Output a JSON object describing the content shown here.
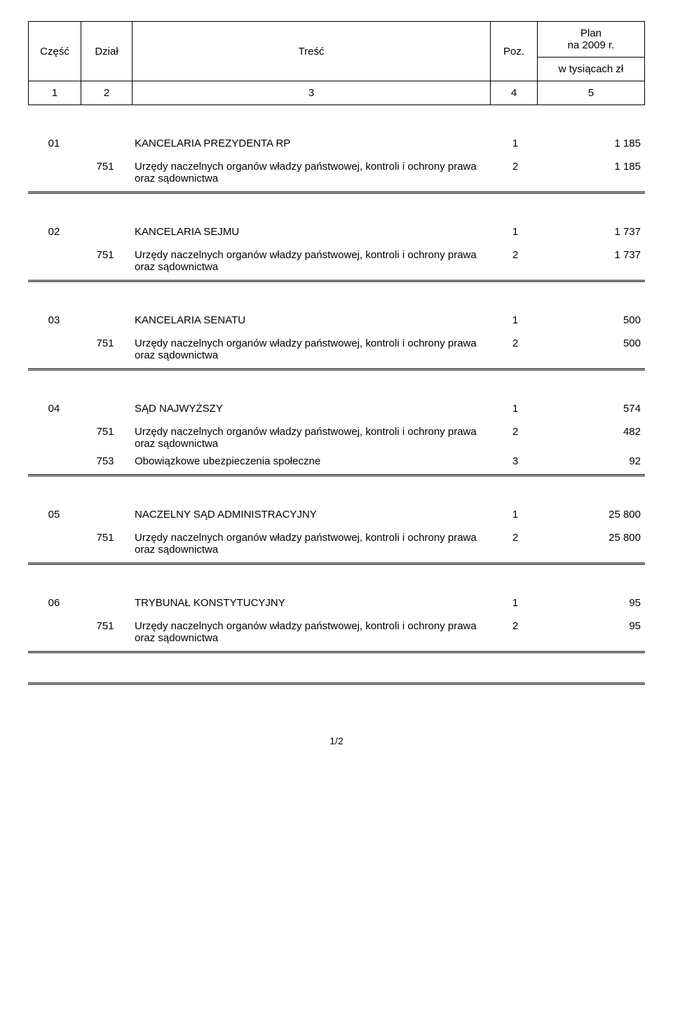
{
  "header": {
    "czesc": "Część",
    "dzial": "Dział",
    "tresc": "Treść",
    "poz": "Poz.",
    "plan": "Plan\nna 2009 r.",
    "w_tys": "w tysiącach zł",
    "col1": "1",
    "col2": "2",
    "col3": "3",
    "col4": "4",
    "col5": "5"
  },
  "sections": [
    {
      "czesc": "01",
      "title": "KANCELARIA PREZYDENTA RP",
      "title_poz": "1",
      "title_val": "1 185",
      "rows": [
        {
          "dzial": "751",
          "tresc": "Urzędy naczelnych organów władzy państwowej, kontroli i ochrony prawa oraz sądownictwa",
          "poz": "2",
          "val": "1 185"
        }
      ]
    },
    {
      "czesc": "02",
      "title": "KANCELARIA SEJMU",
      "title_poz": "1",
      "title_val": "1 737",
      "rows": [
        {
          "dzial": "751",
          "tresc": "Urzędy naczelnych organów władzy państwowej, kontroli i ochrony prawa oraz sądownictwa",
          "poz": "2",
          "val": "1 737"
        }
      ]
    },
    {
      "czesc": "03",
      "title": "KANCELARIA SENATU",
      "title_poz": "1",
      "title_val": "500",
      "rows": [
        {
          "dzial": "751",
          "tresc": "Urzędy naczelnych organów władzy państwowej, kontroli i ochrony prawa oraz sądownictwa",
          "poz": "2",
          "val": "500"
        }
      ]
    },
    {
      "czesc": "04",
      "title": "SĄD NAJWYŻSZY",
      "title_poz": "1",
      "title_val": "574",
      "rows": [
        {
          "dzial": "751",
          "tresc": "Urzędy naczelnych organów władzy państwowej, kontroli i ochrony prawa oraz sądownictwa",
          "poz": "2",
          "val": "482"
        },
        {
          "dzial": "753",
          "tresc": "Obowiązkowe ubezpieczenia społeczne",
          "poz": "3",
          "val": "92"
        }
      ]
    },
    {
      "czesc": "05",
      "title": "NACZELNY SĄD ADMINISTRACYJNY",
      "title_poz": "1",
      "title_val": "25 800",
      "rows": [
        {
          "dzial": "751",
          "tresc": "Urzędy naczelnych organów władzy państwowej, kontroli i ochrony prawa oraz sądownictwa",
          "poz": "2",
          "val": "25 800"
        }
      ]
    },
    {
      "czesc": "06",
      "title": "TRYBUNAŁ KONSTYTUCYJNY",
      "title_poz": "1",
      "title_val": "95",
      "rows": [
        {
          "dzial": "751",
          "tresc": "Urzędy naczelnych organów władzy państwowej, kontroli i ochrony prawa oraz sądownictwa",
          "poz": "2",
          "val": "95"
        }
      ]
    }
  ],
  "footer": "1/2"
}
